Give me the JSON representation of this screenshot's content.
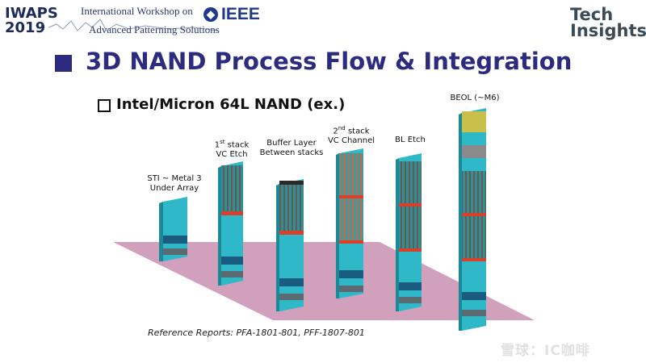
{
  "header": {
    "conference": "IWAPS",
    "year": "2019",
    "workshop_line1": "International Workshop on",
    "workshop_line2": "Advanced Patterning Solutions",
    "ieee": "IEEE",
    "logo_line1": "Tech",
    "logo_line2": "Insights"
  },
  "slide": {
    "title": "3D NAND Process Flow & Integration",
    "subtitle": "Intel/Micron 64L NAND (ex.)"
  },
  "steps": [
    {
      "line1": "STI ~ Metal 3",
      "line2": "Under Array"
    },
    {
      "line1_num": "1",
      "line1_sup": "st",
      "line1_rest": " stack",
      "line2": "VC Etch"
    },
    {
      "line1": "Buffer Layer",
      "line2": "Between stacks"
    },
    {
      "line1_num": "2",
      "line1_sup": "nd",
      "line1_rest": " stack",
      "line2": "VC Channel"
    },
    {
      "line1": "BL Etch"
    },
    {
      "line1": "BEOL (~M6)"
    }
  ],
  "footer": {
    "reference": "Reference Reports: PFA-1801-801, PFF-1807-801",
    "watermark": "雪球：IC咖啡"
  },
  "colors": {
    "title": "#2c2b80",
    "floor": "#c88fb1",
    "silicon": "#2eb8c8",
    "stack_orange": "#e07a3a",
    "beol": "#c8c04a"
  }
}
